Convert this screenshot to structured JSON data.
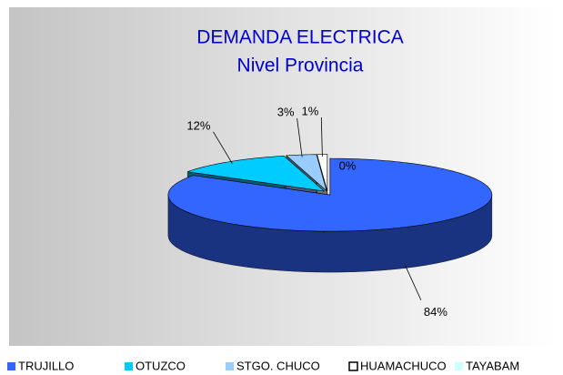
{
  "chart_data": {
    "type": "pie",
    "title": "DEMANDA ELECTRICA",
    "subtitle": "Nivel Provincia",
    "categories": [
      "TRUJILLO",
      "OTUZCO",
      "STGO. CHUCO",
      "HUAMACHUCO",
      "TAYABAM"
    ],
    "values": [
      84,
      12,
      3,
      1,
      0
    ],
    "value_labels": [
      "84%",
      "12%",
      "3%",
      "1%",
      "0%"
    ],
    "colors": [
      "#3366ff",
      "#00ccff",
      "#99ccff",
      "#ffffff",
      "#ccffff"
    ],
    "legend": "bottom"
  }
}
